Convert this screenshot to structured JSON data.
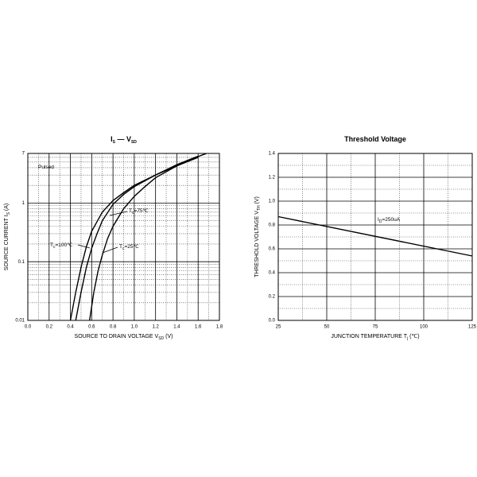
{
  "chart_data": [
    {
      "type": "line",
      "title": [
        {
          "text": "I"
        },
        {
          "text": "S",
          "sub": true
        },
        {
          "text": " — V"
        },
        {
          "text": "SD",
          "sub": true
        }
      ],
      "xlabel": [
        {
          "text": "SOURCE TO DRAIN VOLTAGE  V"
        },
        {
          "text": "SD",
          "sub": true
        },
        {
          "text": "  (V)"
        }
      ],
      "ylabel": [
        {
          "text": "SOURCE CURRENT  I"
        },
        {
          "text": "S",
          "sub": true
        },
        {
          "text": "  (A)"
        }
      ],
      "xlim": [
        0,
        1.8
      ],
      "xticks": [
        {
          "value": 0,
          "label": "0.0"
        },
        0.2,
        0.4,
        0.6,
        0.8,
        {
          "value": 1,
          "label": "1.0"
        },
        1.2,
        1.4,
        1.6,
        1.8
      ],
      "ylim": [
        0.01,
        7
      ],
      "yticks": [
        0.01,
        0.1,
        1,
        7
      ],
      "log_y": true,
      "grid": true,
      "annotations": [
        [
          {
            "text": "Pulsed"
          }
        ],
        [
          {
            "text": "T"
          },
          {
            "text": "c",
            "sub": true
          },
          {
            "text": "=75℃"
          }
        ],
        [
          {
            "text": "T"
          },
          {
            "text": "c",
            "sub": true
          },
          {
            "text": "=100℃"
          }
        ],
        [
          {
            "text": "T"
          },
          {
            "text": "c",
            "sub": true
          },
          {
            "text": "=25℃"
          }
        ]
      ],
      "series": [
        {
          "color": "#000000",
          "x": [
            0.4,
            0.45,
            0.5,
            0.55,
            0.6,
            0.7,
            0.8,
            0.9,
            1.0,
            1.2,
            1.4,
            1.6
          ],
          "values": [
            0.01,
            0.03,
            0.08,
            0.18,
            0.33,
            0.7,
            1.1,
            1.5,
            2.0,
            3.0,
            4.3,
            6.0
          ]
        },
        {
          "color": "#000000",
          "x": [
            0.45,
            0.5,
            0.55,
            0.6,
            0.65,
            0.7,
            0.8,
            0.9,
            1.0,
            1.2,
            1.4,
            1.6
          ],
          "values": [
            0.01,
            0.03,
            0.08,
            0.17,
            0.3,
            0.5,
            0.95,
            1.4,
            1.9,
            3.0,
            4.5,
            6.3
          ]
        },
        {
          "color": "#000000",
          "x": [
            0.58,
            0.62,
            0.66,
            0.7,
            0.75,
            0.8,
            0.9,
            1.0,
            1.1,
            1.2,
            1.4,
            1.6,
            1.68
          ],
          "values": [
            0.01,
            0.03,
            0.07,
            0.13,
            0.25,
            0.4,
            0.8,
            1.3,
            1.9,
            2.7,
            4.3,
            6.2,
            7
          ]
        }
      ]
    },
    {
      "type": "line",
      "title": [
        {
          "text": "Threshold Voltage"
        }
      ],
      "xlabel": [
        {
          "text": "JUNCTION TEMPERATURE   T"
        },
        {
          "text": "j",
          "sub": true
        },
        {
          "text": "  (℃)"
        }
      ],
      "ylabel": [
        {
          "text": "THRESHOLD VOLTAGE  V"
        },
        {
          "text": "TH",
          "sub": true
        },
        {
          "text": "  (V)"
        }
      ],
      "xlim": [
        25,
        125
      ],
      "xticks": [
        25,
        50,
        75,
        100,
        125
      ],
      "ylim": [
        0,
        1.4
      ],
      "yticks": [
        {
          "value": 0,
          "label": "0.0"
        },
        0.2,
        0.4,
        0.6,
        0.8,
        {
          "value": 1,
          "label": "1.0"
        },
        1.2,
        1.4
      ],
      "grid": true,
      "annotations": [
        [
          {
            "text": "I"
          },
          {
            "text": "D",
            "sub": true
          },
          {
            "text": "=250uA"
          }
        ]
      ],
      "series": [
        {
          "color": "#000000",
          "x": [
            25,
            125
          ],
          "values": [
            0.87,
            0.54
          ]
        }
      ]
    }
  ]
}
